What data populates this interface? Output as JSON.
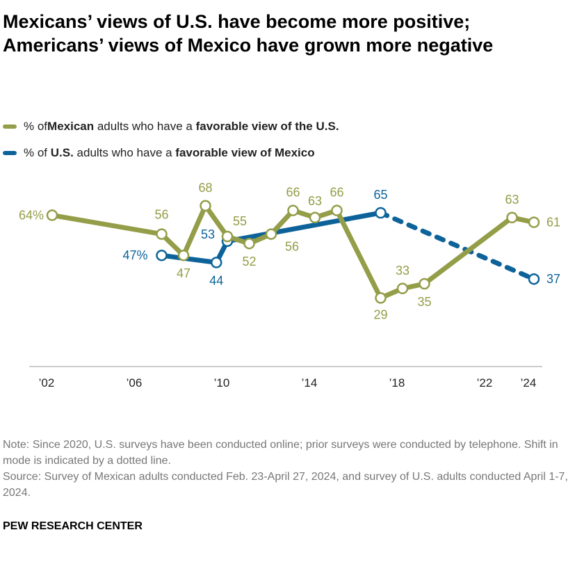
{
  "title": "Mexicans’ views of U.S. have become more positive; Americans’ views of Mexico have grown more negative",
  "legend": [
    {
      "pre": "% of ",
      "b1": "Mexican",
      "mid": " adults who have a ",
      "b2": "favorable view of the U.S.",
      "color": "#949d48"
    },
    {
      "pre": "% of ",
      "b1": "U.S.",
      "mid": " adults who have a ",
      "b2": "favorable view of Mexico",
      "color": "#0d6399"
    }
  ],
  "chart_data": {
    "type": "line",
    "x_ticks": [
      {
        "year": 2002,
        "label": "’02"
      },
      {
        "year": 2006,
        "label": "’06"
      },
      {
        "year": 2010,
        "label": "’10"
      },
      {
        "year": 2014,
        "label": "’14"
      },
      {
        "year": 2018,
        "label": "’18"
      },
      {
        "year": 2022,
        "label": "’22"
      },
      {
        "year": 2024,
        "label": "’24"
      }
    ],
    "ylim": [
      0,
      100
    ],
    "grid": false,
    "series": [
      {
        "key": "mexico",
        "color": "#949d48",
        "points": [
          {
            "x": 2002,
            "y": 64,
            "label": "64%"
          },
          {
            "x": 2007,
            "y": 56,
            "label": "56"
          },
          {
            "x": 2008,
            "y": 47,
            "label": "47"
          },
          {
            "x": 2009,
            "y": 68,
            "label": "68"
          },
          {
            "x": 2010,
            "y": 55,
            "label": "55"
          },
          {
            "x": 2011,
            "y": 52,
            "label": "52"
          },
          {
            "x": 2012,
            "y": 56,
            "label": "56"
          },
          {
            "x": 2013,
            "y": 66,
            "label": "66"
          },
          {
            "x": 2014,
            "y": 63,
            "label": "63"
          },
          {
            "x": 2015,
            "y": 66,
            "label": "66"
          },
          {
            "x": 2017,
            "y": 29,
            "label": "29"
          },
          {
            "x": 2018,
            "y": 33,
            "label": "33"
          },
          {
            "x": 2019,
            "y": 35,
            "label": "35"
          },
          {
            "x": 2023,
            "y": 63,
            "label": "63"
          },
          {
            "x": 2024,
            "y": 61,
            "label": "61"
          }
        ]
      },
      {
        "key": "us",
        "color": "#0d6399",
        "dashed_from": 2017,
        "points": [
          {
            "x": 2007,
            "y": 47,
            "label": "47%"
          },
          {
            "x": 2009.5,
            "y": 44,
            "label": "44"
          },
          {
            "x": 2010,
            "y": 53,
            "label": "53"
          },
          {
            "x": 2017,
            "y": 65,
            "label": "65"
          },
          {
            "x": 2024,
            "y": 37,
            "label": "37"
          }
        ]
      }
    ]
  },
  "note": "Note: Since 2020, U.S. surveys have been conducted online; prior surveys were conducted by telephone. Shift in mode is indicated by a dotted line.",
  "source": "Source: Survey of Mexican adults conducted Feb. 23-April 27, 2024, and survey of U.S. adults conducted April 1-7, 2024.",
  "brand": "PEW RESEARCH CENTER"
}
